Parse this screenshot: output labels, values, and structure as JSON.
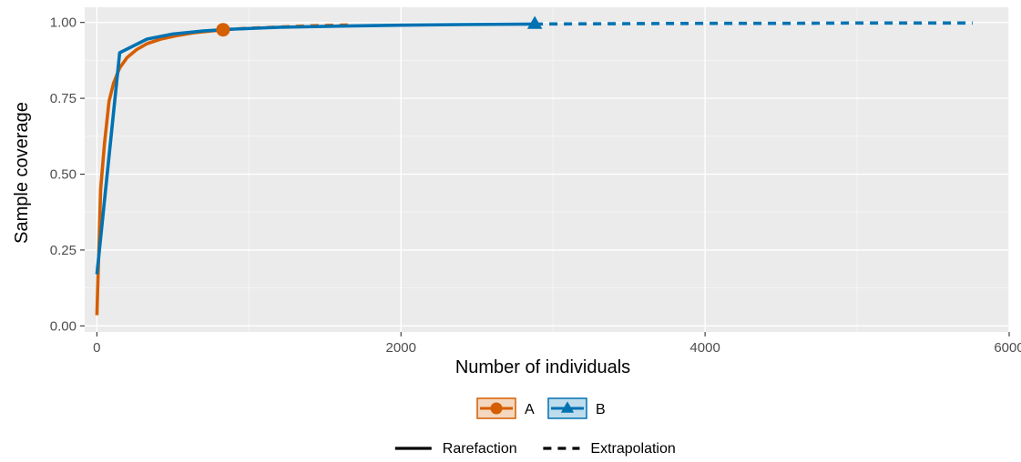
{
  "chart_data": {
    "type": "line",
    "xlabel": "Number of individuals",
    "ylabel": "Sample coverage",
    "xlim": [
      -80,
      6000
    ],
    "ylim": [
      -0.02,
      1.05
    ],
    "x_ticks": [
      0,
      2000,
      4000,
      6000
    ],
    "x_tick_labels": [
      "0",
      "2000",
      "4000",
      "6000"
    ],
    "y_ticks": [
      0,
      0.25,
      0.5,
      0.75,
      1.0
    ],
    "y_tick_labels": [
      "0.00",
      "0.25",
      "0.50",
      "0.75",
      "1.00"
    ],
    "grid": true,
    "legend_position": "bottom",
    "series": [
      {
        "name": "A",
        "color": "#d55e00",
        "marker": "circle",
        "observed": {
          "x": 830,
          "y": 0.976
        },
        "rarefaction": {
          "x": [
            0,
            25,
            50,
            80,
            110,
            150,
            200,
            260,
            330,
            420,
            520,
            640,
            760,
            830
          ],
          "y": [
            0.035,
            0.45,
            0.6,
            0.74,
            0.8,
            0.85,
            0.885,
            0.91,
            0.93,
            0.945,
            0.956,
            0.966,
            0.972,
            0.976
          ]
        },
        "extrapolation": {
          "x": [
            830,
            1000,
            1200,
            1400,
            1660
          ],
          "y": [
            0.976,
            0.981,
            0.985,
            0.989,
            0.992
          ]
        }
      },
      {
        "name": "B",
        "color": "#0072b2",
        "marker": "triangle",
        "observed": {
          "x": 2880,
          "y": 0.995
        },
        "rarefaction": {
          "x": [
            0,
            150,
            330,
            500,
            700,
            900,
            1200,
            1600,
            2000,
            2400,
            2880
          ],
          "y": [
            0.17,
            0.9,
            0.945,
            0.962,
            0.972,
            0.978,
            0.984,
            0.988,
            0.991,
            0.993,
            0.995
          ]
        },
        "extrapolation": {
          "x": [
            2880,
            3500,
            4000,
            4500,
            5000,
            5760
          ],
          "y": [
            0.995,
            0.996,
            0.997,
            0.997,
            0.998,
            0.998
          ]
        }
      }
    ],
    "linetype_legend": [
      {
        "label": "Rarefaction",
        "style": "solid"
      },
      {
        "label": "Extrapolation",
        "style": "dashed"
      }
    ]
  }
}
